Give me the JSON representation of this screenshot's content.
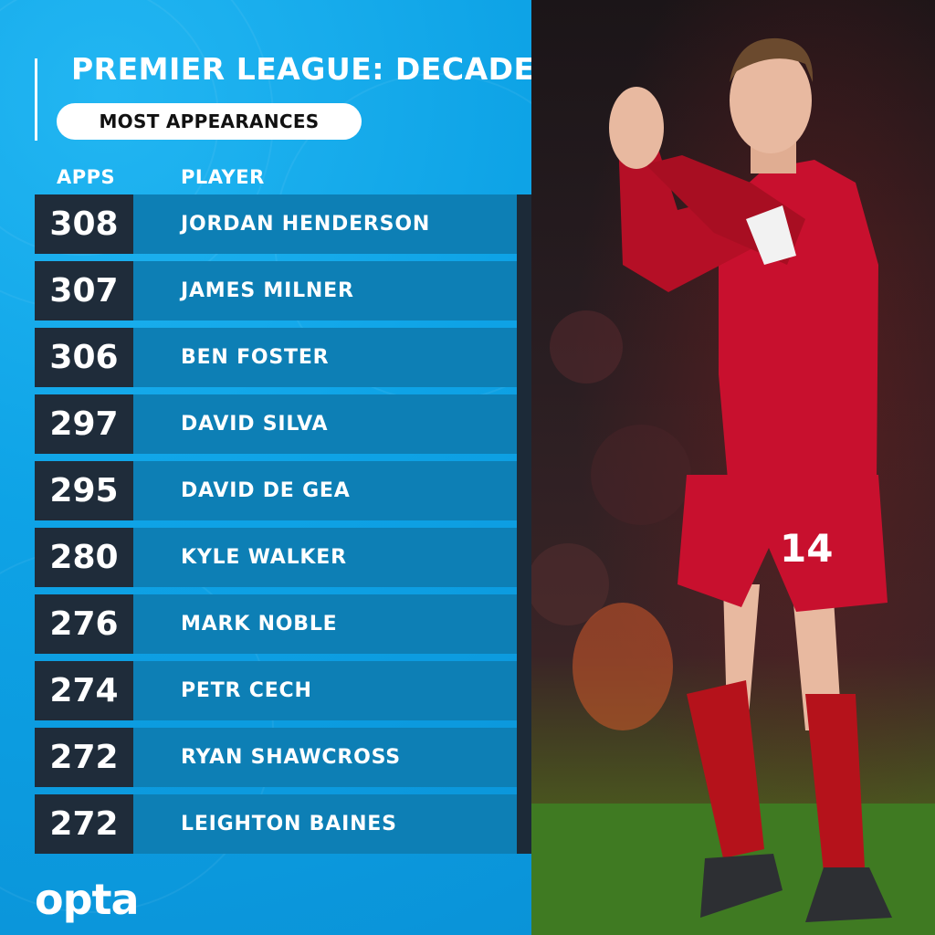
{
  "header": {
    "title": "PREMIER LEAGUE: DECADE",
    "subtitle": "MOST APPEARANCES"
  },
  "table": {
    "col_apps": "APPS",
    "col_player": "PLAYER",
    "rows": [
      {
        "apps": "308",
        "player": "JORDAN HENDERSON"
      },
      {
        "apps": "307",
        "player": "JAMES MILNER"
      },
      {
        "apps": "306",
        "player": "BEN FOSTER"
      },
      {
        "apps": "297",
        "player": "DAVID SILVA"
      },
      {
        "apps": "295",
        "player": "DAVID DE GEA"
      },
      {
        "apps": "280",
        "player": "KYLE WALKER"
      },
      {
        "apps": "276",
        "player": "MARK NOBLE"
      },
      {
        "apps": "274",
        "player": "PETR CECH"
      },
      {
        "apps": "272",
        "player": "RYAN SHAWCROSS"
      },
      {
        "apps": "272",
        "player": "LEIGHTON BAINES"
      }
    ]
  },
  "footer": {
    "logo_text": "opta"
  },
  "photo": {
    "shirt_number": "14"
  },
  "colors": {
    "panel_blue": "#0ea3e6",
    "row_blue": "#0d7fb5",
    "apps_dark": "#1f2c3a",
    "kit_red": "#c8102e"
  }
}
